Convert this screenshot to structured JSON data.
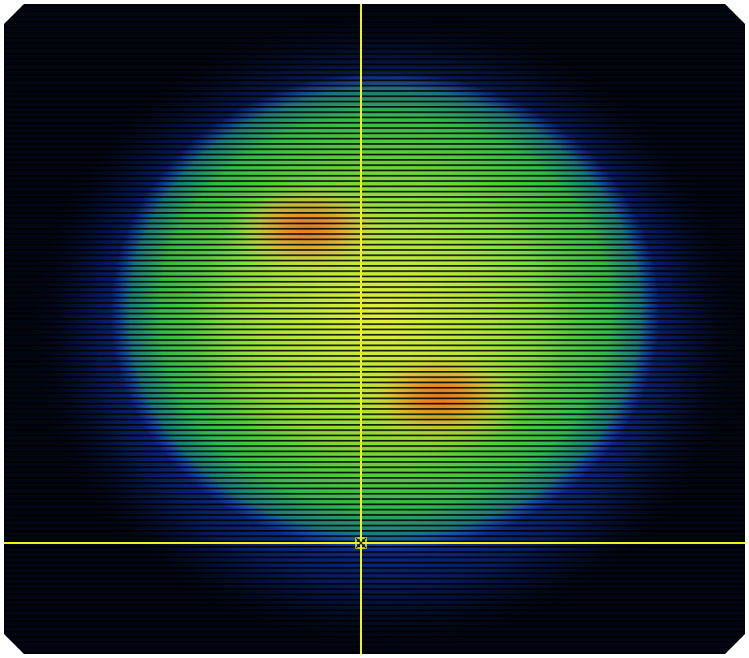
{
  "image": {
    "kind": "false-color beam intensity profile",
    "colormap": [
      "#000814",
      "#0a2a8a",
      "#1a5cff",
      "#22b35a",
      "#7ee03a",
      "#d9f23a",
      "#f0a020",
      "#e86a1c"
    ],
    "background_color": "#020612",
    "scanline_color": "#000000",
    "crosshair_color": "#f2f21a",
    "marker_icon": "crosshair-center-marker"
  }
}
